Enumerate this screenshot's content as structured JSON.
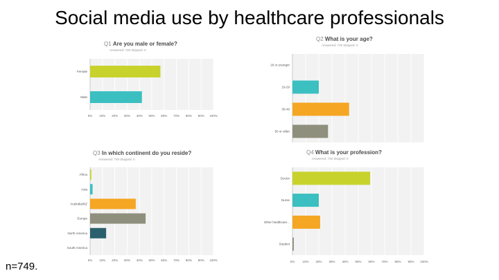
{
  "slide": {
    "title": "Social media use by healthcare professionals",
    "footnote": "n=749."
  },
  "chart_data": [
    {
      "type": "bar",
      "orientation": "horizontal",
      "question_number": "Q1",
      "title": "Are you male or female?",
      "subtitle": "Answered: 749    Skipped: 0",
      "categories": [
        "Female",
        "Male"
      ],
      "values": [
        57,
        42
      ],
      "colors": [
        "#c8d22c",
        "#3bbfc1"
      ],
      "xticks": [
        "0%",
        "10%",
        "20%",
        "30%",
        "40%",
        "50%",
        "60%",
        "70%",
        "80%",
        "90%",
        "100%"
      ],
      "xlim": [
        0,
        100
      ],
      "grid": true
    },
    {
      "type": "bar",
      "orientation": "horizontal",
      "question_number": "Q2",
      "title": "What is your age?",
      "subtitle": "Answered: 749    Skipped: 0",
      "categories": [
        "18 or younger",
        "19-29",
        "30-49",
        "50 or older"
      ],
      "values": [
        0,
        20,
        43,
        27
      ],
      "colors": [
        "#3bbfc1",
        "#3bbfc1",
        "#f5a623",
        "#8f8f7d"
      ],
      "xlim": [
        0,
        100
      ],
      "grid": true
    },
    {
      "type": "bar",
      "orientation": "horizontal",
      "question_number": "Q3",
      "title": "In which continent do you reside?",
      "subtitle": "Answered: 749    Skipped: 0",
      "categories": [
        "Africa",
        "Asia",
        "Australia/NZ",
        "Europe",
        "North America",
        "South America"
      ],
      "values": [
        1,
        2,
        37,
        45,
        13,
        0
      ],
      "colors": [
        "#c8d22c",
        "#3bbfc1",
        "#f5a623",
        "#8f8f7d",
        "#2b5f6e",
        "#3bbfc1"
      ],
      "xticks": [
        "0%",
        "10%",
        "20%",
        "30%",
        "40%",
        "50%",
        "60%",
        "70%",
        "80%",
        "90%",
        "100%"
      ],
      "xlim": [
        0,
        100
      ],
      "grid": true
    },
    {
      "type": "bar",
      "orientation": "horizontal",
      "question_number": "Q4",
      "title": "What is your profession?",
      "subtitle": "Answered: 749    Skipped: 0",
      "categories": [
        "Doctor",
        "Nurse",
        "Other healthcare...",
        "Student"
      ],
      "values": [
        59,
        20,
        21,
        1
      ],
      "colors": [
        "#c8d22c",
        "#3bbfc1",
        "#f5a623",
        "#8f8f7d"
      ],
      "xticks": [
        "0%",
        "10%",
        "20%",
        "30%",
        "40%",
        "50%",
        "60%",
        "70%",
        "80%",
        "90%",
        "100%"
      ],
      "xlim": [
        0,
        100
      ],
      "grid": true
    }
  ]
}
